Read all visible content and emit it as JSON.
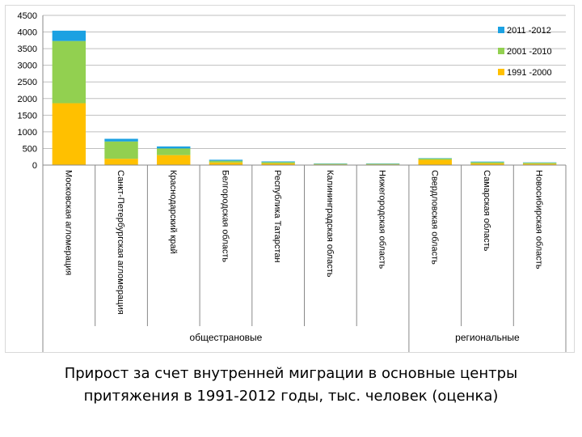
{
  "chart_data": {
    "type": "bar",
    "stacked": true,
    "ylim": [
      0,
      4500
    ],
    "yticks": [
      0,
      500,
      1000,
      1500,
      2000,
      2500,
      3000,
      3500,
      4000,
      4500
    ],
    "grid": true,
    "legend_position": "right",
    "categories": [
      "Московская агломерация",
      "Санкт-Петербургская агломерация",
      "Краснодарский край",
      "Белгородская область",
      "Республика Татарстан",
      "Калининградская область",
      "Нижегородская область",
      "Свердловская область",
      "Самарская область",
      "Новосибирская область"
    ],
    "groups": [
      {
        "label": "общестрановые",
        "count": 7
      },
      {
        "label": "региональные",
        "count": 3
      }
    ],
    "series": [
      {
        "name": "1991-2000",
        "color": "#ffc000",
        "values": [
          1860,
          190,
          300,
          80,
          50,
          20,
          20,
          160,
          50,
          40
        ]
      },
      {
        "name": "2001-2010",
        "color": "#92d050",
        "values": [
          1870,
          520,
          200,
          50,
          40,
          20,
          20,
          40,
          40,
          30
        ]
      },
      {
        "name": "2011-2012",
        "color": "#1ba1e2",
        "values": [
          310,
          80,
          60,
          30,
          20,
          10,
          10,
          10,
          15,
          10
        ]
      }
    ],
    "legend_order": [
      "2011-2012",
      "2001-2010",
      "1991-2000"
    ],
    "legend_labels": {
      "2011-2012": "2011 -2012",
      "2001-2010": "2001 -2010",
      "1991-2000": "1991 -2000"
    }
  },
  "caption": {
    "line1": "Прирост за счет внутренней миграции в основные центры",
    "line2": "притяжения в 1991-2012 годы, тыс. человек (оценка)"
  }
}
